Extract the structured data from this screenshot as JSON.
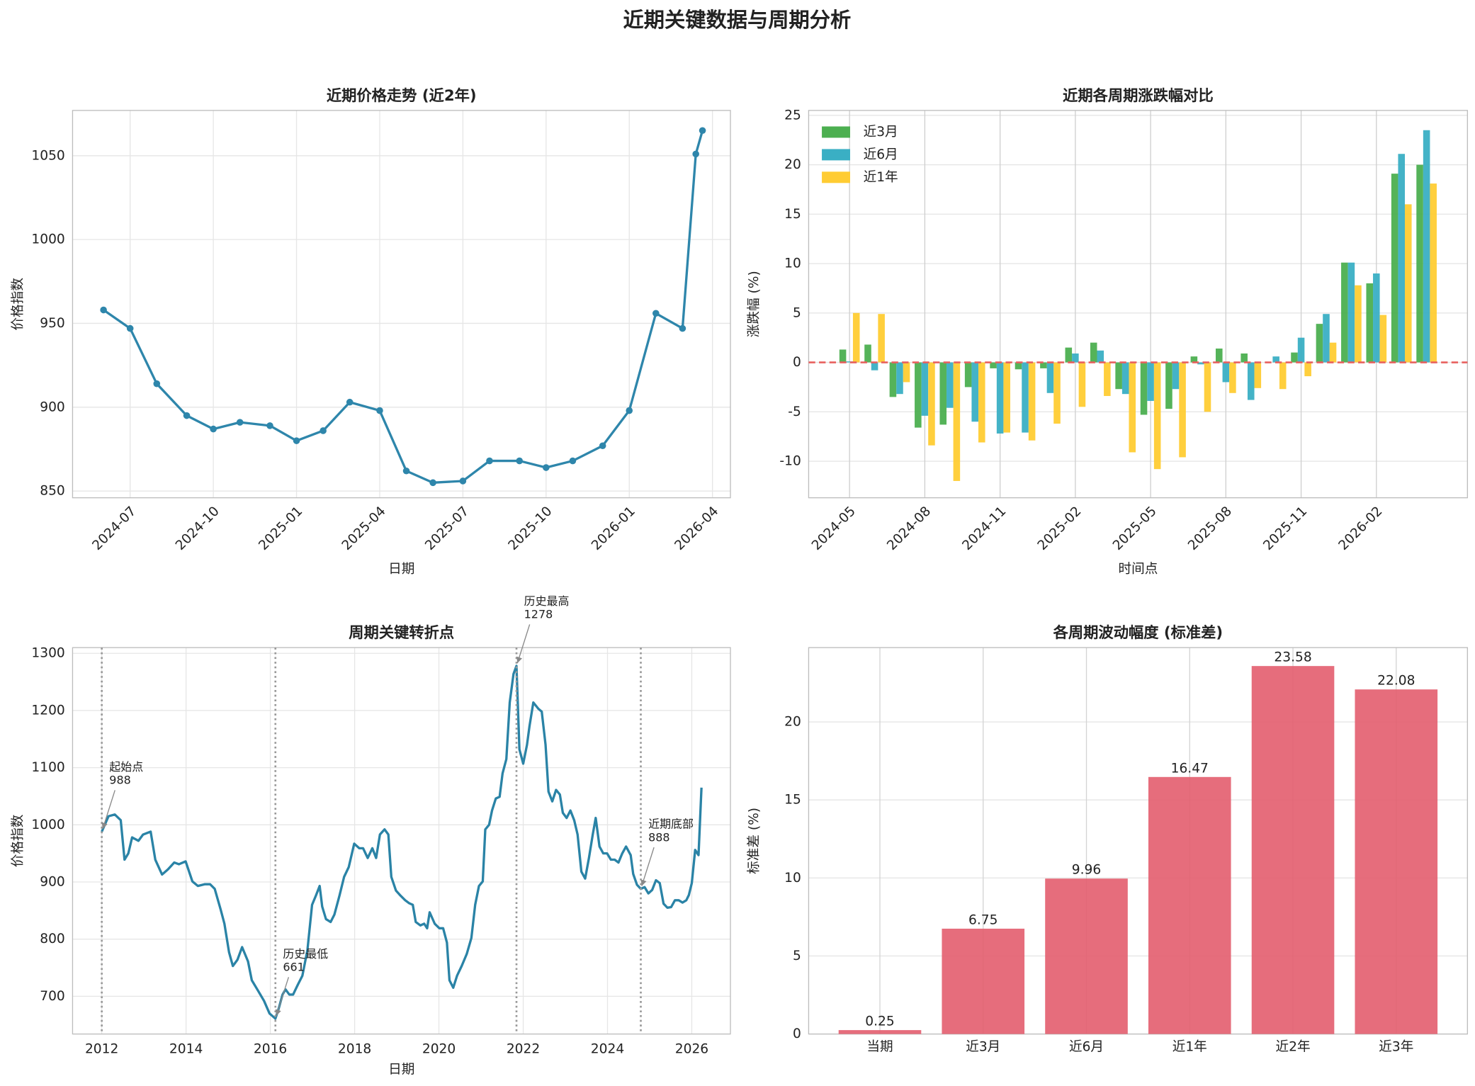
{
  "title": "近期关键数据与周期分析",
  "chart_data": [
    {
      "type": "line",
      "title": "近期价格走势 (近2年)",
      "x_label": "日期",
      "y_label": "价格指数",
      "x": [
        2024.42,
        2024.5,
        2024.58,
        2024.67,
        2024.75,
        2024.83,
        2024.92,
        2025.0,
        2025.08,
        2025.16,
        2025.25,
        2025.33,
        2025.41,
        2025.5,
        2025.58,
        2025.67,
        2025.75,
        2025.83,
        2025.92,
        2026.0,
        2026.08,
        2026.16,
        2026.2,
        2026.22
      ],
      "values": [
        958,
        947,
        914,
        895,
        887,
        891,
        889,
        880,
        886,
        903,
        898,
        862,
        855,
        856,
        868,
        868,
        864,
        868,
        877,
        898,
        956,
        947,
        1051,
        1065
      ],
      "color": "#2e86ab",
      "markers": true,
      "xlim": [
        2024.327,
        2026.304
      ],
      "xticks": [
        {
          "value": 2024.5,
          "label": "2024-07"
        },
        {
          "value": 2024.75,
          "label": "2024-10"
        },
        {
          "value": 2025.0,
          "label": "2025-01"
        },
        {
          "value": 2025.25,
          "label": "2025-04"
        },
        {
          "value": 2025.5,
          "label": "2025-07"
        },
        {
          "value": 2025.75,
          "label": "2025-10"
        },
        {
          "value": 2026.0,
          "label": "2026-01"
        },
        {
          "value": 2026.25,
          "label": "2026-04"
        }
      ],
      "x_tick_rotation": 45,
      "ylim": [
        846,
        1077
      ],
      "yticks": [
        850,
        900,
        950,
        1000,
        1050
      ],
      "grid": true
    },
    {
      "type": "bar",
      "title": "近期各周期涨跌幅对比",
      "x_label": "时间点",
      "y_label": "涨跌幅 (%)",
      "categories": [
        "2024-05",
        null,
        null,
        "2024-08",
        null,
        null,
        "2024-11",
        null,
        null,
        "2025-02",
        null,
        null,
        "2025-05",
        null,
        null,
        "2025-08",
        null,
        null,
        "2025-11",
        null,
        null,
        "2026-02",
        null,
        null
      ],
      "series": [
        {
          "name": "近3月",
          "color": "#4caf50",
          "values": [
            1.3,
            1.8,
            -3.5,
            -6.6,
            -6.3,
            -2.5,
            -0.6,
            -0.7,
            -0.6,
            1.5,
            2.0,
            -2.7,
            -5.3,
            -4.7,
            0.6,
            1.4,
            0.9,
            0.0,
            1.0,
            3.9,
            10.1,
            8.0,
            19.1,
            20.0
          ]
        },
        {
          "name": "近6月",
          "color": "#3aafc4",
          "values": [
            0.1,
            -0.8,
            -3.2,
            -5.4,
            -4.6,
            -6.0,
            -7.2,
            -7.1,
            -3.1,
            0.9,
            1.2,
            -3.2,
            -3.9,
            -2.7,
            -0.2,
            -2.0,
            -3.8,
            0.6,
            2.5,
            4.9,
            10.1,
            9.0,
            21.1,
            23.5
          ]
        },
        {
          "name": "近1年",
          "color": "#ffcc33",
          "values": [
            5.0,
            4.9,
            -2.0,
            -8.4,
            -12.0,
            -8.1,
            -7.1,
            -7.9,
            -6.2,
            -4.5,
            -3.4,
            -9.1,
            -10.8,
            -9.6,
            -5.0,
            -3.1,
            -2.6,
            -2.7,
            -1.4,
            2.0,
            7.8,
            4.8,
            16.0,
            18.1
          ]
        }
      ],
      "x_tick_rotation": 45,
      "ylim": [
        -13.7,
        25.5
      ],
      "yticks": [
        -10,
        -5,
        0,
        5,
        10,
        15,
        20,
        25
      ],
      "grid": true,
      "legend": "upper left",
      "hline": {
        "value": 0,
        "color": "#e8605f",
        "style": "dashed"
      }
    },
    {
      "type": "line",
      "title": "周期关键转折点",
      "x_label": "日期",
      "y_label": "价格指数",
      "x": [
        2012.0,
        2012.16,
        2012.31,
        2012.45,
        2012.54,
        2012.63,
        2012.72,
        2012.87,
        2012.98,
        2013.16,
        2013.27,
        2013.43,
        2013.57,
        2013.72,
        2013.83,
        2013.99,
        2014.15,
        2014.28,
        2014.44,
        2014.57,
        2014.68,
        2014.82,
        2014.91,
        2015.02,
        2015.11,
        2015.22,
        2015.33,
        2015.47,
        2015.56,
        2015.69,
        2015.85,
        2015.98,
        2016.12,
        2016.2,
        2016.29,
        2016.36,
        2016.45,
        2016.54,
        2016.65,
        2016.76,
        2016.88,
        2016.99,
        2017.08,
        2017.17,
        2017.23,
        2017.32,
        2017.43,
        2017.52,
        2017.64,
        2017.75,
        2017.86,
        2017.99,
        2018.11,
        2018.2,
        2018.31,
        2018.42,
        2018.51,
        2018.6,
        2018.71,
        2018.8,
        2018.87,
        2018.98,
        2019.09,
        2019.2,
        2019.29,
        2019.38,
        2019.45,
        2019.56,
        2019.65,
        2019.72,
        2019.78,
        2019.9,
        2020.01,
        2020.1,
        2020.19,
        2020.25,
        2020.34,
        2020.43,
        2020.54,
        2020.66,
        2020.77,
        2020.86,
        2020.95,
        2021.04,
        2021.1,
        2021.19,
        2021.26,
        2021.35,
        2021.44,
        2021.51,
        2021.6,
        2021.68,
        2021.77,
        2021.84,
        2021.91,
        2022.0,
        2022.09,
        2022.15,
        2022.24,
        2022.36,
        2022.44,
        2022.53,
        2022.6,
        2022.69,
        2022.78,
        2022.87,
        2022.94,
        2023.03,
        2023.12,
        2023.21,
        2023.29,
        2023.38,
        2023.47,
        2023.56,
        2023.65,
        2023.72,
        2023.81,
        2023.9,
        2023.99,
        2024.08,
        2024.17,
        2024.26,
        2024.35,
        2024.44,
        2024.55,
        2024.61,
        2024.7,
        2024.79,
        2024.88,
        2024.97,
        2025.06,
        2025.15,
        2025.24,
        2025.33,
        2025.42,
        2025.51,
        2025.6,
        2025.69,
        2025.78,
        2025.87,
        2025.93,
        2026.0,
        2026.08,
        2026.16,
        2026.23
      ],
      "values": [
        988,
        1015,
        1018,
        1008,
        939,
        950,
        978,
        972,
        983,
        988,
        939,
        913,
        922,
        934,
        931,
        936,
        901,
        893,
        896,
        896,
        888,
        852,
        827,
        777,
        753,
        764,
        786,
        761,
        728,
        712,
        692,
        670,
        661,
        679,
        703,
        712,
        703,
        703,
        720,
        736,
        781,
        860,
        876,
        893,
        857,
        835,
        830,
        843,
        876,
        909,
        926,
        967,
        959,
        959,
        942,
        959,
        942,
        983,
        992,
        983,
        909,
        885,
        876,
        868,
        863,
        860,
        830,
        824,
        827,
        819,
        847,
        827,
        819,
        819,
        794,
        728,
        715,
        736,
        753,
        774,
        802,
        860,
        893,
        901,
        992,
        1000,
        1025,
        1046,
        1049,
        1090,
        1115,
        1214,
        1264,
        1278,
        1132,
        1107,
        1140,
        1173,
        1214,
        1203,
        1198,
        1140,
        1058,
        1041,
        1061,
        1053,
        1021,
        1012,
        1025,
        1008,
        983,
        918,
        906,
        942,
        983,
        1012,
        962,
        950,
        950,
        939,
        939,
        934,
        950,
        962,
        947,
        914,
        895,
        888,
        891,
        880,
        886,
        903,
        898,
        862,
        855,
        856,
        868,
        868,
        864,
        868,
        877,
        898,
        956,
        947,
        1065
      ],
      "color": "#2a83a6",
      "markers": false,
      "annotations": [
        {
          "label": "起始点",
          "x": 2012.0,
          "value": 988
        },
        {
          "label": "历史最低",
          "x": 2016.12,
          "value": 661
        },
        {
          "label": "历史最高",
          "x": 2021.84,
          "value": 1278
        },
        {
          "label": "近期底部",
          "x": 2024.79,
          "value": 888
        }
      ],
      "xlim": [
        2011.307,
        2026.917
      ],
      "xticks": [
        2012,
        2014,
        2016,
        2018,
        2020,
        2022,
        2024,
        2026
      ],
      "ylim": [
        634,
        1310
      ],
      "yticks": [
        700,
        800,
        900,
        1000,
        1100,
        1200,
        1300
      ],
      "grid": true
    },
    {
      "type": "bar",
      "title": "各周期波动幅度 (标准差)",
      "y_label": "标准差 (%)",
      "categories": [
        "当期",
        "近3月",
        "近6月",
        "近1年",
        "近2年",
        "近3年"
      ],
      "values": [
        0.25,
        6.75,
        9.96,
        16.47,
        23.58,
        22.08
      ],
      "color": "#e35d6e",
      "data_labels": true,
      "ylim": [
        0,
        24.76
      ],
      "yticks": [
        0,
        5,
        10,
        15,
        20
      ],
      "grid": true
    }
  ]
}
